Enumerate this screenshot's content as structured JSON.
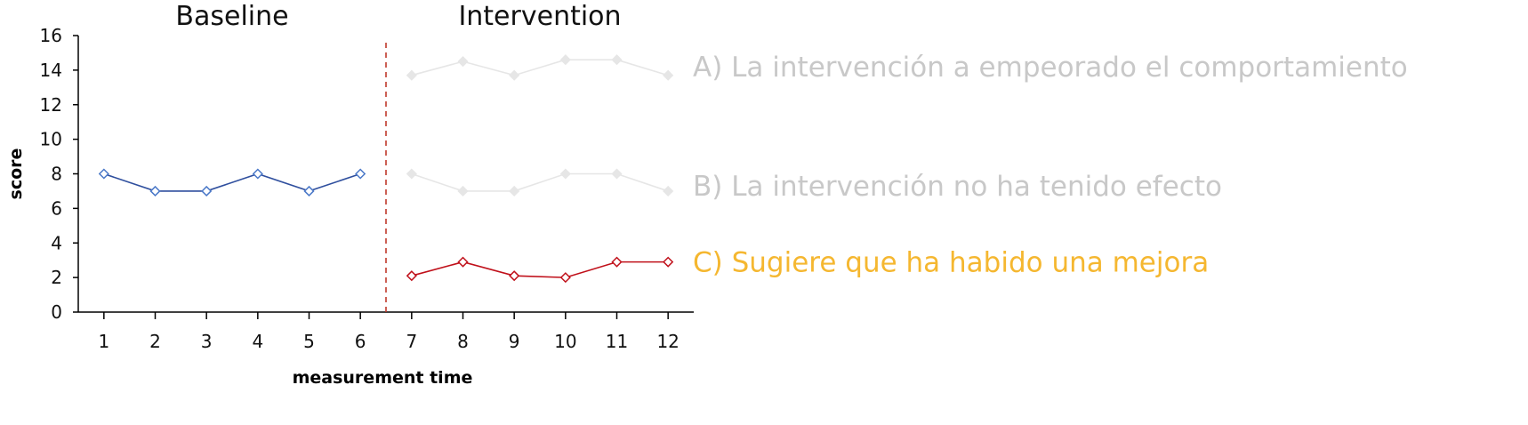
{
  "chart_data": {
    "type": "line",
    "phases": [
      {
        "label": "Baseline",
        "x": 3.5
      },
      {
        "label": "Intervention",
        "x": 9.5
      }
    ],
    "phase_change_x": 6.5,
    "xlabel": "measurement time",
    "ylabel": "score",
    "xlim": [
      0.5,
      12.5
    ],
    "ylim": [
      0,
      16
    ],
    "x_ticks": [
      1,
      2,
      3,
      4,
      5,
      6,
      7,
      8,
      9,
      10,
      11,
      12
    ],
    "y_ticks": [
      0,
      2,
      4,
      6,
      8,
      10,
      12,
      14,
      16
    ],
    "series": [
      {
        "id": "baseline",
        "x": [
          1,
          2,
          3,
          4,
          5,
          6
        ],
        "values": [
          8,
          7,
          7,
          8,
          7,
          8
        ],
        "color": "#2f4f9e",
        "marker_fill": "#ffffff",
        "marker_stroke": "#4a78c8"
      },
      {
        "id": "option-a",
        "x": [
          7,
          8,
          9,
          10,
          11,
          12
        ],
        "values": [
          13.7,
          14.5,
          13.7,
          14.6,
          14.6,
          13.7
        ],
        "color": "#e6e6e6",
        "marker_fill": "#e6e6e6",
        "marker_stroke": "#e6e6e6",
        "label": "A) La intervención a empeorado el comportamiento",
        "label_color": "#c8c8c8",
        "label_y": 14.2
      },
      {
        "id": "option-b",
        "x": [
          7,
          8,
          9,
          10,
          11,
          12
        ],
        "values": [
          8,
          7,
          7,
          8,
          8,
          7
        ],
        "color": "#e6e6e6",
        "marker_fill": "#e6e6e6",
        "marker_stroke": "#e6e6e6",
        "label": "B) La intervención no ha tenido efecto",
        "label_color": "#c8c8c8",
        "label_y": 7.3
      },
      {
        "id": "option-c",
        "x": [
          7,
          8,
          9,
          10,
          11,
          12
        ],
        "values": [
          2.1,
          2.9,
          2.1,
          2.0,
          2.9,
          2.9
        ],
        "color": "#c0101a",
        "marker_fill": "#ffffff",
        "marker_stroke": "#c0101a",
        "label": "C) Sugiere que ha habido una mejora",
        "label_color": "#f5b730",
        "label_y": 2.9
      }
    ],
    "phase_line_color": "#c0392b",
    "grid": false
  }
}
